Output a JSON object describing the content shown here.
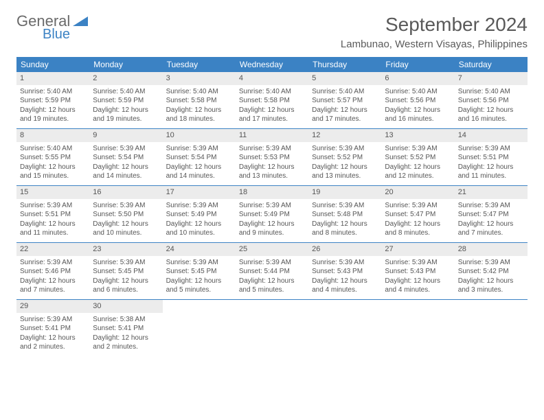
{
  "logo": {
    "text1": "General",
    "text2": "Blue"
  },
  "title": "September 2024",
  "location": "Lambunao, Western Visayas, Philippines",
  "colors": {
    "header_bg": "#3b82c4",
    "daynum_bg": "#ececec",
    "text": "#555555",
    "page_bg": "#ffffff"
  },
  "weekdays": [
    "Sunday",
    "Monday",
    "Tuesday",
    "Wednesday",
    "Thursday",
    "Friday",
    "Saturday"
  ],
  "weeks": [
    [
      {
        "n": "1",
        "sr": "Sunrise: 5:40 AM",
        "ss": "Sunset: 5:59 PM",
        "d1": "Daylight: 12 hours",
        "d2": "and 19 minutes."
      },
      {
        "n": "2",
        "sr": "Sunrise: 5:40 AM",
        "ss": "Sunset: 5:59 PM",
        "d1": "Daylight: 12 hours",
        "d2": "and 19 minutes."
      },
      {
        "n": "3",
        "sr": "Sunrise: 5:40 AM",
        "ss": "Sunset: 5:58 PM",
        "d1": "Daylight: 12 hours",
        "d2": "and 18 minutes."
      },
      {
        "n": "4",
        "sr": "Sunrise: 5:40 AM",
        "ss": "Sunset: 5:58 PM",
        "d1": "Daylight: 12 hours",
        "d2": "and 17 minutes."
      },
      {
        "n": "5",
        "sr": "Sunrise: 5:40 AM",
        "ss": "Sunset: 5:57 PM",
        "d1": "Daylight: 12 hours",
        "d2": "and 17 minutes."
      },
      {
        "n": "6",
        "sr": "Sunrise: 5:40 AM",
        "ss": "Sunset: 5:56 PM",
        "d1": "Daylight: 12 hours",
        "d2": "and 16 minutes."
      },
      {
        "n": "7",
        "sr": "Sunrise: 5:40 AM",
        "ss": "Sunset: 5:56 PM",
        "d1": "Daylight: 12 hours",
        "d2": "and 16 minutes."
      }
    ],
    [
      {
        "n": "8",
        "sr": "Sunrise: 5:40 AM",
        "ss": "Sunset: 5:55 PM",
        "d1": "Daylight: 12 hours",
        "d2": "and 15 minutes."
      },
      {
        "n": "9",
        "sr": "Sunrise: 5:39 AM",
        "ss": "Sunset: 5:54 PM",
        "d1": "Daylight: 12 hours",
        "d2": "and 14 minutes."
      },
      {
        "n": "10",
        "sr": "Sunrise: 5:39 AM",
        "ss": "Sunset: 5:54 PM",
        "d1": "Daylight: 12 hours",
        "d2": "and 14 minutes."
      },
      {
        "n": "11",
        "sr": "Sunrise: 5:39 AM",
        "ss": "Sunset: 5:53 PM",
        "d1": "Daylight: 12 hours",
        "d2": "and 13 minutes."
      },
      {
        "n": "12",
        "sr": "Sunrise: 5:39 AM",
        "ss": "Sunset: 5:52 PM",
        "d1": "Daylight: 12 hours",
        "d2": "and 13 minutes."
      },
      {
        "n": "13",
        "sr": "Sunrise: 5:39 AM",
        "ss": "Sunset: 5:52 PM",
        "d1": "Daylight: 12 hours",
        "d2": "and 12 minutes."
      },
      {
        "n": "14",
        "sr": "Sunrise: 5:39 AM",
        "ss": "Sunset: 5:51 PM",
        "d1": "Daylight: 12 hours",
        "d2": "and 11 minutes."
      }
    ],
    [
      {
        "n": "15",
        "sr": "Sunrise: 5:39 AM",
        "ss": "Sunset: 5:51 PM",
        "d1": "Daylight: 12 hours",
        "d2": "and 11 minutes."
      },
      {
        "n": "16",
        "sr": "Sunrise: 5:39 AM",
        "ss": "Sunset: 5:50 PM",
        "d1": "Daylight: 12 hours",
        "d2": "and 10 minutes."
      },
      {
        "n": "17",
        "sr": "Sunrise: 5:39 AM",
        "ss": "Sunset: 5:49 PM",
        "d1": "Daylight: 12 hours",
        "d2": "and 10 minutes."
      },
      {
        "n": "18",
        "sr": "Sunrise: 5:39 AM",
        "ss": "Sunset: 5:49 PM",
        "d1": "Daylight: 12 hours",
        "d2": "and 9 minutes."
      },
      {
        "n": "19",
        "sr": "Sunrise: 5:39 AM",
        "ss": "Sunset: 5:48 PM",
        "d1": "Daylight: 12 hours",
        "d2": "and 8 minutes."
      },
      {
        "n": "20",
        "sr": "Sunrise: 5:39 AM",
        "ss": "Sunset: 5:47 PM",
        "d1": "Daylight: 12 hours",
        "d2": "and 8 minutes."
      },
      {
        "n": "21",
        "sr": "Sunrise: 5:39 AM",
        "ss": "Sunset: 5:47 PM",
        "d1": "Daylight: 12 hours",
        "d2": "and 7 minutes."
      }
    ],
    [
      {
        "n": "22",
        "sr": "Sunrise: 5:39 AM",
        "ss": "Sunset: 5:46 PM",
        "d1": "Daylight: 12 hours",
        "d2": "and 7 minutes."
      },
      {
        "n": "23",
        "sr": "Sunrise: 5:39 AM",
        "ss": "Sunset: 5:45 PM",
        "d1": "Daylight: 12 hours",
        "d2": "and 6 minutes."
      },
      {
        "n": "24",
        "sr": "Sunrise: 5:39 AM",
        "ss": "Sunset: 5:45 PM",
        "d1": "Daylight: 12 hours",
        "d2": "and 5 minutes."
      },
      {
        "n": "25",
        "sr": "Sunrise: 5:39 AM",
        "ss": "Sunset: 5:44 PM",
        "d1": "Daylight: 12 hours",
        "d2": "and 5 minutes."
      },
      {
        "n": "26",
        "sr": "Sunrise: 5:39 AM",
        "ss": "Sunset: 5:43 PM",
        "d1": "Daylight: 12 hours",
        "d2": "and 4 minutes."
      },
      {
        "n": "27",
        "sr": "Sunrise: 5:39 AM",
        "ss": "Sunset: 5:43 PM",
        "d1": "Daylight: 12 hours",
        "d2": "and 4 minutes."
      },
      {
        "n": "28",
        "sr": "Sunrise: 5:39 AM",
        "ss": "Sunset: 5:42 PM",
        "d1": "Daylight: 12 hours",
        "d2": "and 3 minutes."
      }
    ],
    [
      {
        "n": "29",
        "sr": "Sunrise: 5:39 AM",
        "ss": "Sunset: 5:41 PM",
        "d1": "Daylight: 12 hours",
        "d2": "and 2 minutes."
      },
      {
        "n": "30",
        "sr": "Sunrise: 5:38 AM",
        "ss": "Sunset: 5:41 PM",
        "d1": "Daylight: 12 hours",
        "d2": "and 2 minutes."
      },
      null,
      null,
      null,
      null,
      null
    ]
  ]
}
